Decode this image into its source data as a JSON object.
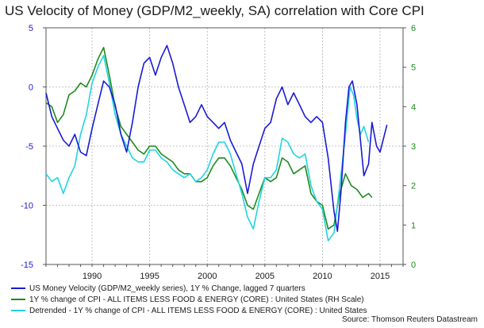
{
  "chart_data": {
    "type": "line",
    "title": "US Velocity of Money (GDP/M2_weekly, SA) correlation with Core CPI",
    "left_axis": {
      "ylim": [
        -15,
        5
      ],
      "ticks": [
        "5",
        "0",
        "-5",
        "-10",
        "-15"
      ],
      "color": "#1a1ad6"
    },
    "right_axis": {
      "ylim": [
        0,
        6
      ],
      "ticks": [
        "6",
        "5",
        "4",
        "3",
        "2",
        "1",
        "0"
      ],
      "color": "#1f8a1f"
    },
    "x_axis": {
      "xlim": [
        1986,
        2017
      ],
      "ticks": [
        "1990",
        "1995",
        "2000",
        "2005",
        "2010",
        "2015"
      ]
    },
    "grid": true,
    "legend_position": "bottom-left",
    "series": [
      {
        "name": "US Money Velocity (GDP/M2_weekly series), 1Y % Change, lagged 7 quarters",
        "axis": "left",
        "color": "#1a1ad6",
        "points": [
          [
            1986.0,
            -0.5
          ],
          [
            1986.5,
            -2.5
          ],
          [
            1987.0,
            -3.5
          ],
          [
            1987.5,
            -4.5
          ],
          [
            1988.0,
            -5.0
          ],
          [
            1988.5,
            -4.0
          ],
          [
            1989.0,
            -5.5
          ],
          [
            1989.5,
            -5.8
          ],
          [
            1990.0,
            -3.5
          ],
          [
            1990.5,
            -1.5
          ],
          [
            1991.0,
            0.5
          ],
          [
            1991.5,
            0.0
          ],
          [
            1992.0,
            -1.5
          ],
          [
            1992.5,
            -4.0
          ],
          [
            1993.0,
            -5.5
          ],
          [
            1993.5,
            -3.0
          ],
          [
            1994.0,
            0.0
          ],
          [
            1994.5,
            2.0
          ],
          [
            1995.0,
            2.5
          ],
          [
            1995.5,
            1.0
          ],
          [
            1996.0,
            2.5
          ],
          [
            1996.5,
            3.5
          ],
          [
            1997.0,
            2.0
          ],
          [
            1997.5,
            0.0
          ],
          [
            1998.0,
            -1.5
          ],
          [
            1998.5,
            -3.0
          ],
          [
            1999.0,
            -2.5
          ],
          [
            1999.5,
            -1.5
          ],
          [
            2000.0,
            -2.5
          ],
          [
            2000.5,
            -3.0
          ],
          [
            2001.0,
            -3.5
          ],
          [
            2001.5,
            -3.0
          ],
          [
            2002.0,
            -4.5
          ],
          [
            2002.5,
            -5.5
          ],
          [
            2003.0,
            -6.5
          ],
          [
            2003.5,
            -9.0
          ],
          [
            2004.0,
            -6.5
          ],
          [
            2004.5,
            -5.0
          ],
          [
            2005.0,
            -3.5
          ],
          [
            2005.5,
            -3.0
          ],
          [
            2006.0,
            -1.0
          ],
          [
            2006.5,
            0.0
          ],
          [
            2007.0,
            -1.5
          ],
          [
            2007.5,
            -0.5
          ],
          [
            2008.0,
            -1.5
          ],
          [
            2008.5,
            -2.5
          ],
          [
            2009.0,
            -3.0
          ],
          [
            2009.5,
            -2.5
          ],
          [
            2010.0,
            -3.0
          ],
          [
            2010.5,
            -6.0
          ],
          [
            2011.0,
            -10.5
          ],
          [
            2011.3,
            -12.2
          ],
          [
            2011.6,
            -9.0
          ],
          [
            2012.0,
            -3.0
          ],
          [
            2012.3,
            0.0
          ],
          [
            2012.6,
            0.5
          ],
          [
            2013.0,
            -1.5
          ],
          [
            2013.3,
            -4.5
          ],
          [
            2013.6,
            -7.5
          ],
          [
            2014.0,
            -6.5
          ],
          [
            2014.3,
            -3.0
          ],
          [
            2014.7,
            -5.0
          ],
          [
            2015.0,
            -5.5
          ],
          [
            2015.6,
            -3.2
          ]
        ]
      },
      {
        "name": "1Y % change of CPI - ALL ITEMS LESS FOOD & ENERGY (CORE) : United States (RH Scale)",
        "axis": "right",
        "color": "#1f8a1f",
        "points": [
          [
            1986.0,
            4.1
          ],
          [
            1986.5,
            4.0
          ],
          [
            1987.0,
            3.6
          ],
          [
            1987.5,
            3.8
          ],
          [
            1988.0,
            4.3
          ],
          [
            1988.5,
            4.4
          ],
          [
            1989.0,
            4.6
          ],
          [
            1989.5,
            4.5
          ],
          [
            1990.0,
            4.8
          ],
          [
            1990.5,
            5.2
          ],
          [
            1991.0,
            5.5
          ],
          [
            1991.5,
            4.8
          ],
          [
            1992.0,
            4.0
          ],
          [
            1992.5,
            3.5
          ],
          [
            1993.0,
            3.3
          ],
          [
            1993.5,
            3.1
          ],
          [
            1994.0,
            2.9
          ],
          [
            1994.5,
            2.8
          ],
          [
            1995.0,
            3.0
          ],
          [
            1995.5,
            3.0
          ],
          [
            1996.0,
            2.8
          ],
          [
            1996.5,
            2.7
          ],
          [
            1997.0,
            2.6
          ],
          [
            1997.5,
            2.4
          ],
          [
            1998.0,
            2.3
          ],
          [
            1998.5,
            2.3
          ],
          [
            1999.0,
            2.1
          ],
          [
            1999.5,
            2.1
          ],
          [
            2000.0,
            2.2
          ],
          [
            2000.5,
            2.5
          ],
          [
            2001.0,
            2.7
          ],
          [
            2001.5,
            2.7
          ],
          [
            2002.0,
            2.5
          ],
          [
            2002.5,
            2.2
          ],
          [
            2003.0,
            1.9
          ],
          [
            2003.5,
            1.5
          ],
          [
            2004.0,
            1.4
          ],
          [
            2004.5,
            1.8
          ],
          [
            2005.0,
            2.2
          ],
          [
            2005.5,
            2.1
          ],
          [
            2006.0,
            2.2
          ],
          [
            2006.5,
            2.7
          ],
          [
            2007.0,
            2.6
          ],
          [
            2007.5,
            2.3
          ],
          [
            2008.0,
            2.4
          ],
          [
            2008.5,
            2.5
          ],
          [
            2009.0,
            1.8
          ],
          [
            2009.5,
            1.6
          ],
          [
            2010.0,
            1.5
          ],
          [
            2010.5,
            0.9
          ],
          [
            2011.0,
            1.0
          ],
          [
            2011.5,
            1.8
          ],
          [
            2012.0,
            2.3
          ],
          [
            2012.5,
            2.0
          ],
          [
            2013.0,
            1.9
          ],
          [
            2013.5,
            1.7
          ],
          [
            2014.0,
            1.8
          ],
          [
            2014.3,
            1.7
          ]
        ]
      },
      {
        "name": "Detrended - 1Y % change of CPI - ALL ITEMS LESS FOOD & ENERGY (CORE) : United States",
        "axis": "right",
        "color": "#22d4e0",
        "points": [
          [
            1986.0,
            2.3
          ],
          [
            1986.5,
            2.1
          ],
          [
            1987.0,
            2.2
          ],
          [
            1987.5,
            1.8
          ],
          [
            1988.0,
            2.2
          ],
          [
            1988.5,
            2.5
          ],
          [
            1989.0,
            3.3
          ],
          [
            1989.5,
            3.8
          ],
          [
            1990.0,
            4.6
          ],
          [
            1990.5,
            5.0
          ],
          [
            1991.0,
            5.3
          ],
          [
            1991.5,
            4.6
          ],
          [
            1992.0,
            3.8
          ],
          [
            1992.5,
            3.3
          ],
          [
            1993.0,
            3.0
          ],
          [
            1993.5,
            2.7
          ],
          [
            1994.0,
            2.6
          ],
          [
            1994.5,
            2.6
          ],
          [
            1995.0,
            2.9
          ],
          [
            1995.5,
            2.9
          ],
          [
            1996.0,
            2.7
          ],
          [
            1996.5,
            2.6
          ],
          [
            1997.0,
            2.4
          ],
          [
            1997.5,
            2.3
          ],
          [
            1998.0,
            2.2
          ],
          [
            1998.5,
            2.3
          ],
          [
            1999.0,
            2.1
          ],
          [
            1999.5,
            2.2
          ],
          [
            2000.0,
            2.4
          ],
          [
            2000.5,
            2.8
          ],
          [
            2001.0,
            3.1
          ],
          [
            2001.5,
            3.1
          ],
          [
            2002.0,
            2.8
          ],
          [
            2002.5,
            2.3
          ],
          [
            2003.0,
            1.8
          ],
          [
            2003.5,
            1.2
          ],
          [
            2004.0,
            0.9
          ],
          [
            2004.5,
            1.6
          ],
          [
            2005.0,
            2.2
          ],
          [
            2005.5,
            2.2
          ],
          [
            2006.0,
            2.4
          ],
          [
            2006.5,
            3.2
          ],
          [
            2007.0,
            3.1
          ],
          [
            2007.5,
            2.8
          ],
          [
            2008.0,
            2.7
          ],
          [
            2008.5,
            2.8
          ],
          [
            2009.0,
            2.0
          ],
          [
            2009.5,
            1.6
          ],
          [
            2010.0,
            1.4
          ],
          [
            2010.5,
            0.6
          ],
          [
            2011.0,
            0.8
          ],
          [
            2011.5,
            2.0
          ],
          [
            2012.0,
            3.3
          ],
          [
            2012.4,
            4.5
          ],
          [
            2012.7,
            4.3
          ],
          [
            2013.0,
            3.7
          ],
          [
            2013.3,
            3.3
          ],
          [
            2013.6,
            3.5
          ],
          [
            2014.0,
            3.1
          ]
        ]
      }
    ]
  },
  "legend": [
    {
      "label": "US Money Velocity (GDP/M2_weekly series), 1Y % Change, lagged 7 quarters",
      "color": "#1a1ad6"
    },
    {
      "label": "1Y % change of CPI - ALL ITEMS LESS FOOD & ENERGY (CORE) : United States (RH Scale)",
      "color": "#1f8a1f"
    },
    {
      "label": "Detrended -  1Y % change of CPI - ALL ITEMS LESS FOOD & ENERGY (CORE) : United States",
      "color": "#22d4e0"
    }
  ],
  "source": "Source: Thomson Reuters Datastream"
}
